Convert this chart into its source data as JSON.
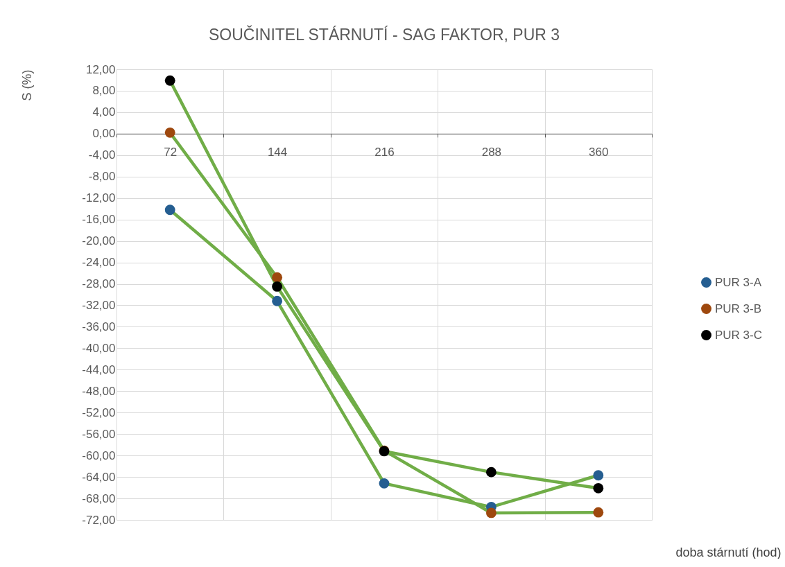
{
  "chart_data": {
    "type": "line",
    "title": "SOUČINITEL STÁRNUTÍ - SAG FAKTOR, PUR 3",
    "xlabel": "doba stárnutí (hod)",
    "ylabel": "S (%)",
    "categories": [
      "72",
      "144",
      "216",
      "288",
      "360"
    ],
    "color": "#70ad47",
    "series": [
      {
        "name": "PUR 3-A",
        "color": "#255e91",
        "values": [
          -14.2,
          -31.2,
          -65.2,
          -69.6,
          -63.7
        ]
      },
      {
        "name": "PUR 3-B",
        "color": "#9e480e",
        "values": [
          0.2,
          -26.8,
          -59.1,
          -70.7,
          -70.6
        ]
      },
      {
        "name": "PUR 3-C",
        "color": "#000000",
        "values": [
          9.9,
          -28.5,
          -59.2,
          -63.1,
          -66.1
        ]
      }
    ],
    "ylim": [
      -72,
      12
    ],
    "yticks": [
      {
        "value": 12,
        "label": "12,00"
      },
      {
        "value": 8,
        "label": "8,00"
      },
      {
        "value": 4,
        "label": "4,00"
      },
      {
        "value": 0,
        "label": "0,00"
      },
      {
        "value": -4,
        "label": "-4,00"
      },
      {
        "value": -8,
        "label": "-8,00"
      },
      {
        "value": -12,
        "label": "-12,00"
      },
      {
        "value": -16,
        "label": "-16,00"
      },
      {
        "value": -20,
        "label": "-20,00"
      },
      {
        "value": -24,
        "label": "-24,00"
      },
      {
        "value": -28,
        "label": "-28,00"
      },
      {
        "value": -32,
        "label": "-32,00"
      },
      {
        "value": -36,
        "label": "-36,00"
      },
      {
        "value": -40,
        "label": "-40,00"
      },
      {
        "value": -44,
        "label": "-44,00"
      },
      {
        "value": -48,
        "label": "-48,00"
      },
      {
        "value": -52,
        "label": "-52,00"
      },
      {
        "value": -56,
        "label": "-56,00"
      },
      {
        "value": -60,
        "label": "-60,00"
      },
      {
        "value": -64,
        "label": "-64,00"
      },
      {
        "value": -68,
        "label": "-68,00"
      },
      {
        "value": -72,
        "label": "-72,00"
      }
    ],
    "grid": true,
    "legend": "right",
    "marker": "circle",
    "line_style": "solid"
  }
}
